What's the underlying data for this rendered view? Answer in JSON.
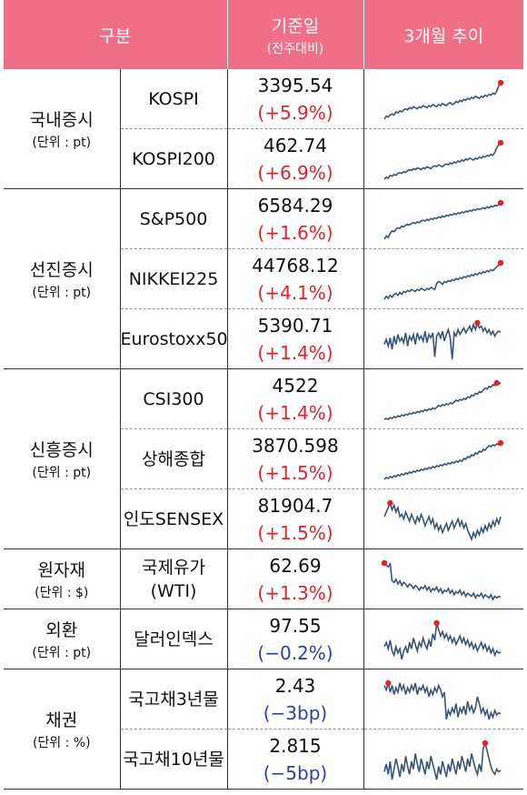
{
  "header": {
    "col1": "구분",
    "col2": "기준일",
    "col2_sub": "(전주대비)",
    "col3": "3개월 추이"
  },
  "colors": {
    "header_bg": "#f16f86",
    "up": "#e8202a",
    "down": "#2e3fa8",
    "line": "#3a5475",
    "marker": "#e8202a"
  },
  "groups": [
    {
      "category": "국내증시",
      "unit": "(단위 : pt)",
      "rows": [
        {
          "name": "KOSPI",
          "value": "3395.54",
          "change": "(+5.9%)",
          "dir": "up",
          "trend": [
            20,
            23,
            22,
            24,
            25,
            24,
            27,
            26,
            28,
            27,
            29,
            30,
            29,
            31,
            30,
            32,
            31,
            30,
            32,
            31,
            33,
            32,
            31,
            33,
            32,
            34,
            33,
            32,
            34,
            33,
            35,
            34,
            33,
            35,
            36,
            34,
            35,
            37,
            36,
            38,
            37,
            39,
            38,
            40,
            39,
            41,
            40,
            42,
            41,
            40,
            42,
            41,
            43,
            42,
            44,
            43,
            45,
            44,
            47,
            52,
            55
          ]
        },
        {
          "name": "KOSPI200",
          "value": "462.74",
          "change": "(+6.9%)",
          "dir": "up",
          "trend": [
            20,
            22,
            21,
            24,
            23,
            25,
            24,
            26,
            27,
            26,
            28,
            27,
            29,
            30,
            29,
            31,
            30,
            32,
            31,
            30,
            32,
            31,
            33,
            32,
            31,
            33,
            34,
            33,
            35,
            34,
            33,
            35,
            36,
            35,
            37,
            36,
            38,
            37,
            39,
            38,
            40,
            39,
            41,
            40,
            42,
            41,
            40,
            42,
            41,
            43,
            42,
            44,
            43,
            45,
            44,
            46,
            45,
            48,
            53,
            56,
            58
          ]
        }
      ]
    },
    {
      "category": "선진증시",
      "unit": "(단위 : pt)",
      "rows": [
        {
          "name": "S&P500",
          "value": "6584.29",
          "change": "(+1.6%)",
          "dir": "up",
          "trend": [
            8,
            12,
            10,
            15,
            18,
            17,
            20,
            22,
            21,
            24,
            23,
            25,
            26,
            25,
            27,
            28,
            27,
            29,
            28,
            30,
            31,
            30,
            32,
            31,
            33,
            32,
            34,
            33,
            35,
            34,
            36,
            35,
            37,
            36,
            38,
            37,
            39,
            38,
            40,
            39,
            41,
            40,
            42,
            41,
            43,
            42,
            44,
            43,
            45,
            44,
            45,
            46,
            45,
            47,
            46,
            48,
            47,
            49,
            48,
            50,
            52
          ]
        },
        {
          "name": "NIKKEI225",
          "value": "44768.12",
          "change": "(+4.1%)",
          "dir": "up",
          "trend": [
            12,
            15,
            13,
            16,
            14,
            17,
            18,
            16,
            19,
            17,
            20,
            19,
            21,
            20,
            22,
            21,
            20,
            22,
            21,
            23,
            22,
            21,
            23,
            22,
            24,
            23,
            22,
            28,
            30,
            29,
            27,
            30,
            29,
            31,
            30,
            32,
            31,
            33,
            32,
            34,
            33,
            35,
            34,
            36,
            35,
            37,
            36,
            38,
            37,
            39,
            38,
            40,
            39,
            41,
            40,
            42,
            41,
            43,
            45,
            47,
            49
          ]
        },
        {
          "name": "Eurostoxx50",
          "value": "5390.71",
          "change": "(+1.4%)",
          "dir": "up",
          "trend": [
            30,
            36,
            28,
            38,
            24,
            40,
            30,
            42,
            34,
            38,
            32,
            44,
            28,
            40,
            35,
            42,
            30,
            44,
            36,
            40,
            34,
            46,
            32,
            42,
            38,
            44,
            15,
            40,
            44,
            38,
            46,
            34,
            42,
            48,
            38,
            12,
            44,
            40,
            48,
            42,
            46,
            50,
            44,
            48,
            52,
            46,
            54,
            48,
            56,
            50,
            52,
            46,
            50,
            44,
            48,
            42,
            46,
            40,
            44,
            46,
            45
          ]
        }
      ]
    },
    {
      "category": "신흥증시",
      "unit": "(단위 : pt)",
      "rows": [
        {
          "name": "CSI300",
          "value": "4522",
          "change": "(+1.4%)",
          "dir": "up",
          "trend": [
            10,
            11,
            10,
            12,
            11,
            13,
            12,
            14,
            13,
            15,
            14,
            16,
            15,
            17,
            16,
            18,
            17,
            19,
            18,
            20,
            19,
            21,
            20,
            22,
            21,
            23,
            22,
            24,
            26,
            25,
            27,
            26,
            28,
            27,
            29,
            28,
            30,
            32,
            31,
            33,
            32,
            34,
            33,
            36,
            35,
            38,
            37,
            40,
            39,
            42,
            41,
            44,
            46,
            45,
            48,
            47,
            50,
            49,
            52,
            51,
            52
          ]
        },
        {
          "name": "상해종합",
          "value": "3870.598",
          "change": "(+1.5%)",
          "dir": "up",
          "trend": [
            10,
            12,
            11,
            13,
            12,
            14,
            13,
            15,
            14,
            16,
            15,
            17,
            16,
            18,
            17,
            19,
            18,
            20,
            19,
            21,
            20,
            22,
            21,
            23,
            22,
            24,
            23,
            25,
            24,
            26,
            25,
            27,
            26,
            28,
            27,
            29,
            28,
            30,
            29,
            31,
            30,
            33,
            32,
            35,
            34,
            37,
            36,
            39,
            38,
            41,
            40,
            43,
            42,
            45,
            47,
            46,
            48,
            47,
            49,
            48,
            50
          ]
        },
        {
          "name": "인도SENSEX",
          "value": "81904.7",
          "change": "(+1.5%)",
          "dir": "up",
          "trend": [
            40,
            44,
            48,
            52,
            46,
            50,
            44,
            48,
            40,
            42,
            38,
            44,
            40,
            36,
            42,
            38,
            34,
            40,
            36,
            42,
            38,
            32,
            36,
            40,
            34,
            38,
            30,
            34,
            28,
            32,
            26,
            30,
            34,
            28,
            32,
            36,
            30,
            34,
            38,
            32,
            36,
            30,
            34,
            28,
            24,
            20,
            26,
            22,
            28,
            24,
            30,
            26,
            32,
            28,
            34,
            30,
            36,
            32,
            38,
            34,
            40
          ]
        },
        {
          "name": "",
          "value": "",
          "change": "",
          "dir": "up",
          "trend": []
        }
      ]
    },
    {
      "category": "원자재",
      "unit": "(단위 : $)",
      "rows": [
        {
          "name": "국제유가\n(WTI)",
          "value": "62.69",
          "change": "(+1.3%)",
          "dir": "up",
          "trend": [
            55,
            52,
            50,
            54,
            32,
            30,
            34,
            28,
            32,
            26,
            30,
            28,
            24,
            28,
            26,
            22,
            26,
            24,
            20,
            24,
            22,
            26,
            20,
            24,
            18,
            22,
            20,
            24,
            18,
            22,
            16,
            20,
            18,
            22,
            16,
            20,
            14,
            18,
            16,
            20,
            14,
            18,
            12,
            16,
            14,
            12,
            16,
            10,
            14,
            12,
            16,
            10,
            14,
            12,
            10,
            14,
            8,
            12,
            10,
            12,
            11
          ]
        }
      ]
    },
    {
      "category": "외환",
      "unit": "(단위 : pt)",
      "rows": [
        {
          "name": "달러인덱스",
          "value": "97.55",
          "change": "(−0.2%)",
          "dir": "down",
          "trend": [
            30,
            34,
            28,
            36,
            26,
            22,
            30,
            24,
            28,
            18,
            26,
            30,
            24,
            34,
            28,
            38,
            32,
            26,
            34,
            30,
            38,
            32,
            28,
            36,
            30,
            42,
            36,
            52,
            46,
            40,
            44,
            38,
            42,
            36,
            40,
            34,
            38,
            32,
            36,
            40,
            34,
            38,
            32,
            36,
            30,
            34,
            28,
            32,
            26,
            30,
            34,
            28,
            32,
            26,
            30,
            24,
            28,
            22,
            26,
            24,
            25
          ]
        }
      ]
    },
    {
      "category": "채권",
      "unit": "(단위 : %)",
      "rows": [
        {
          "name": "국고채3년물",
          "value": "2.43",
          "change": "(−3bp)",
          "dir": "down",
          "trend": [
            50,
            46,
            52,
            44,
            50,
            42,
            48,
            44,
            52,
            46,
            50,
            42,
            48,
            44,
            50,
            46,
            52,
            42,
            48,
            46,
            50,
            44,
            48,
            40,
            46,
            42,
            48,
            44,
            50,
            46,
            40,
            44,
            20,
            28,
            24,
            30,
            26,
            34,
            22,
            30,
            26,
            32,
            24,
            36,
            28,
            32,
            26,
            30,
            40,
            34,
            26,
            30,
            24,
            28,
            20,
            26,
            22,
            28,
            24,
            26,
            25
          ]
        },
        {
          "name": "국고채10년물",
          "value": "2.815",
          "change": "(−5bp)",
          "dir": "down",
          "trend": [
            30,
            36,
            28,
            38,
            24,
            32,
            40,
            34,
            26,
            36,
            30,
            42,
            34,
            28,
            38,
            32,
            44,
            36,
            30,
            40,
            34,
            28,
            38,
            32,
            42,
            36,
            30,
            24,
            34,
            28,
            38,
            32,
            26,
            36,
            30,
            40,
            34,
            28,
            38,
            32,
            42,
            36,
            30,
            40,
            34,
            44,
            38,
            32,
            28,
            36,
            30,
            48,
            52,
            46,
            40,
            34,
            30,
            28,
            32,
            30,
            31
          ]
        }
      ]
    }
  ]
}
